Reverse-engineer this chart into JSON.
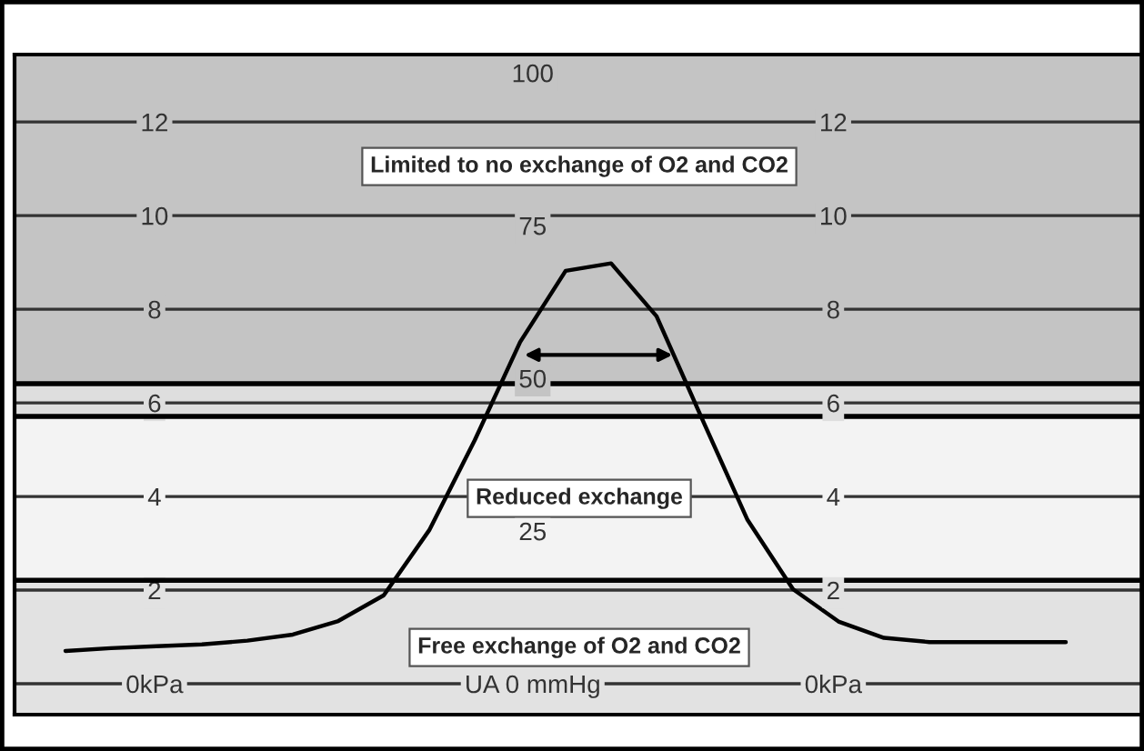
{
  "chart_data": {
    "type": "line",
    "categories": [
      null,
      null,
      null,
      null,
      null,
      null,
      null,
      null,
      null,
      null,
      null,
      null,
      null,
      null,
      null,
      null,
      null,
      null,
      null,
      null,
      null,
      null,
      null
    ],
    "series": [
      {
        "color": "#000000",
        "values": [
          0.7,
          0.76,
          0.8,
          0.84,
          0.92,
          1.05,
          1.34,
          1.89,
          3.28,
          5.2,
          7.3,
          8.82,
          8.98,
          7.85,
          5.66,
          3.5,
          2.02,
          1.33,
          0.98,
          0.89,
          0.89,
          0.89,
          0.89
        ]
      }
    ],
    "ylim": [
      -0.66,
      13.44
    ],
    "yticks": [
      {
        "value": 0,
        "label": "0kPa"
      },
      2,
      4,
      6,
      8,
      10,
      12
    ],
    "y2lim": [
      -0.66,
      13.44
    ],
    "y2ticks": [
      {
        "value": 0,
        "label": "0kPa"
      },
      2,
      4,
      6,
      8,
      10,
      12
    ],
    "y3lim": [
      -5.06,
      103
    ],
    "y3ticks": [
      {
        "value": 0,
        "label": "UA 0 mmHg"
      },
      25,
      50,
      75,
      100
    ],
    "tick_labels": "y",
    "bands": [
      {
        "axis": "y",
        "from": 6.41,
        "to": 13.44,
        "label": "Limited to no exchange of O2 and CO2",
        "color": "#c4c4c4"
      },
      {
        "axis": "y",
        "from": 5.71,
        "to": 6.41,
        "color": "#dedede"
      },
      {
        "axis": "y",
        "from": 2.21,
        "to": 5.71,
        "label": "Reduced exchange",
        "color": "#f3f3f3"
      },
      {
        "axis": "y",
        "from": -0.66,
        "to": 2.21,
        "label": "Free exchange of O2 and CO2",
        "color": "#e2e2e2"
      }
    ],
    "ref_lines": [
      {
        "axis": "y",
        "value": 6.41,
        "color": "#000000"
      },
      {
        "axis": "y",
        "value": 5.71,
        "color": "#000000"
      },
      {
        "axis": "y",
        "value": 2.21,
        "color": "#000000"
      }
    ],
    "grid": "y",
    "line_style": "solid",
    "marker": "none",
    "legend": false
  }
}
